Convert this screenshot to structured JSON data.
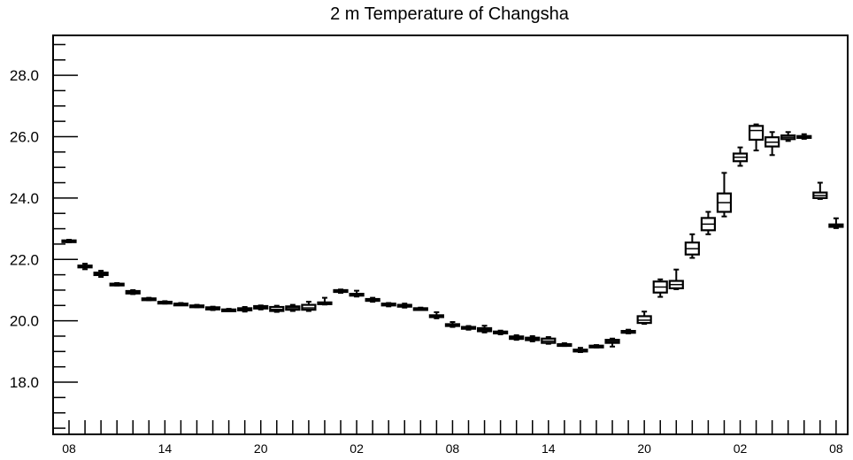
{
  "chart_data": {
    "type": "box",
    "title": "2 m Temperature of Changsha",
    "xlabel": "",
    "ylabel": "",
    "ylim": [
      16.3,
      29.3
    ],
    "yticks": [
      18.0,
      20.0,
      22.0,
      24.0,
      26.0,
      28.0
    ],
    "ytick_labels": [
      "18.0",
      "20.0",
      "22.0",
      "24.0",
      "26.0",
      "28.0"
    ],
    "xtick_labels": [
      "08",
      "14",
      "20",
      "02",
      "08",
      "14",
      "20",
      "02",
      "08"
    ],
    "n_steps": 48,
    "grid": false,
    "series": [
      {
        "t": 0,
        "whislo": 22.56,
        "q1": 22.58,
        "med": 22.6,
        "q3": 22.62,
        "whishi": 22.64
      },
      {
        "t": 1,
        "whislo": 21.68,
        "q1": 21.74,
        "med": 21.77,
        "q3": 21.8,
        "whishi": 21.86
      },
      {
        "t": 2,
        "whislo": 21.43,
        "q1": 21.49,
        "med": 21.53,
        "q3": 21.57,
        "whishi": 21.63
      },
      {
        "t": 3,
        "whislo": 21.15,
        "q1": 21.17,
        "med": 21.19,
        "q3": 21.21,
        "whishi": 21.23
      },
      {
        "t": 4,
        "whislo": 20.87,
        "q1": 20.89,
        "med": 20.93,
        "q3": 20.97,
        "whishi": 21.0
      },
      {
        "t": 5,
        "whislo": 20.67,
        "q1": 20.69,
        "med": 20.71,
        "q3": 20.73,
        "whishi": 20.75
      },
      {
        "t": 6,
        "whislo": 20.56,
        "q1": 20.58,
        "med": 20.6,
        "q3": 20.62,
        "whishi": 20.64
      },
      {
        "t": 7,
        "whislo": 20.52,
        "q1": 20.53,
        "med": 20.55,
        "q3": 20.56,
        "whishi": 20.58
      },
      {
        "t": 8,
        "whislo": 20.44,
        "q1": 20.46,
        "med": 20.48,
        "q3": 20.5,
        "whishi": 20.52
      },
      {
        "t": 9,
        "whislo": 20.35,
        "q1": 20.37,
        "med": 20.4,
        "q3": 20.44,
        "whishi": 20.46
      },
      {
        "t": 10,
        "whislo": 20.32,
        "q1": 20.34,
        "med": 20.35,
        "q3": 20.37,
        "whishi": 20.39
      },
      {
        "t": 11,
        "whislo": 20.3,
        "q1": 20.34,
        "med": 20.37,
        "q3": 20.41,
        "whishi": 20.45
      },
      {
        "t": 12,
        "whislo": 20.37,
        "q1": 20.4,
        "med": 20.44,
        "q3": 20.48,
        "whishi": 20.5
      },
      {
        "t": 13,
        "whislo": 20.29,
        "q1": 20.32,
        "med": 20.37,
        "q3": 20.45,
        "whishi": 20.49
      },
      {
        "t": 14,
        "whislo": 20.32,
        "q1": 20.36,
        "med": 20.42,
        "q3": 20.47,
        "whishi": 20.52
      },
      {
        "t": 15,
        "whislo": 20.32,
        "q1": 20.36,
        "med": 20.42,
        "q3": 20.52,
        "whishi": 20.62
      },
      {
        "t": 16,
        "whislo": 20.53,
        "q1": 20.56,
        "med": 20.58,
        "q3": 20.6,
        "whishi": 20.75
      },
      {
        "t": 17,
        "whislo": 20.91,
        "q1": 20.94,
        "med": 20.97,
        "q3": 21.0,
        "whishi": 21.02
      },
      {
        "t": 18,
        "whislo": 20.79,
        "q1": 20.82,
        "med": 20.85,
        "q3": 20.88,
        "whishi": 20.98
      },
      {
        "t": 19,
        "whislo": 20.62,
        "q1": 20.65,
        "med": 20.68,
        "q3": 20.71,
        "whishi": 20.75
      },
      {
        "t": 20,
        "whislo": 20.47,
        "q1": 20.5,
        "med": 20.53,
        "q3": 20.56,
        "whishi": 20.58
      },
      {
        "t": 21,
        "whislo": 20.43,
        "q1": 20.46,
        "med": 20.49,
        "q3": 20.52,
        "whishi": 20.56
      },
      {
        "t": 22,
        "whislo": 20.35,
        "q1": 20.37,
        "med": 20.39,
        "q3": 20.41,
        "whishi": 20.43
      },
      {
        "t": 23,
        "whislo": 20.08,
        "q1": 20.12,
        "med": 20.15,
        "q3": 20.18,
        "whishi": 20.28
      },
      {
        "t": 24,
        "whislo": 19.8,
        "q1": 19.83,
        "med": 19.86,
        "q3": 19.89,
        "whishi": 19.96
      },
      {
        "t": 25,
        "whislo": 19.71,
        "q1": 19.74,
        "med": 19.77,
        "q3": 19.8,
        "whishi": 19.83
      },
      {
        "t": 26,
        "whislo": 19.62,
        "q1": 19.66,
        "med": 19.71,
        "q3": 19.76,
        "whishi": 19.84
      },
      {
        "t": 27,
        "whislo": 19.56,
        "q1": 19.59,
        "med": 19.62,
        "q3": 19.65,
        "whishi": 19.68
      },
      {
        "t": 28,
        "whislo": 19.38,
        "q1": 19.41,
        "med": 19.45,
        "q3": 19.49,
        "whishi": 19.53
      },
      {
        "t": 29,
        "whislo": 19.33,
        "q1": 19.37,
        "med": 19.41,
        "q3": 19.45,
        "whishi": 19.5
      },
      {
        "t": 30,
        "whislo": 19.25,
        "q1": 19.28,
        "med": 19.34,
        "q3": 19.42,
        "whishi": 19.47
      },
      {
        "t": 31,
        "whislo": 19.18,
        "q1": 19.2,
        "med": 19.22,
        "q3": 19.24,
        "whishi": 19.27
      },
      {
        "t": 32,
        "whislo": 18.98,
        "q1": 19.0,
        "med": 19.03,
        "q3": 19.06,
        "whishi": 19.12
      },
      {
        "t": 33,
        "whislo": 19.13,
        "q1": 19.15,
        "med": 19.17,
        "q3": 19.19,
        "whishi": 19.21
      },
      {
        "t": 34,
        "whislo": 19.16,
        "q1": 19.28,
        "med": 19.33,
        "q3": 19.38,
        "whishi": 19.42
      },
      {
        "t": 35,
        "whislo": 19.59,
        "q1": 19.61,
        "med": 19.64,
        "q3": 19.67,
        "whishi": 19.71
      },
      {
        "t": 36,
        "whislo": 19.9,
        "q1": 19.93,
        "med": 20.02,
        "q3": 20.15,
        "whishi": 20.3
      },
      {
        "t": 37,
        "whislo": 20.78,
        "q1": 20.92,
        "med": 21.1,
        "q3": 21.28,
        "whishi": 21.35
      },
      {
        "t": 38,
        "whislo": 21.03,
        "q1": 21.06,
        "med": 21.18,
        "q3": 21.3,
        "whishi": 21.67
      },
      {
        "t": 39,
        "whislo": 22.05,
        "q1": 22.16,
        "med": 22.35,
        "q3": 22.55,
        "whishi": 22.82
      },
      {
        "t": 40,
        "whislo": 22.82,
        "q1": 22.95,
        "med": 23.15,
        "q3": 23.35,
        "whishi": 23.55
      },
      {
        "t": 41,
        "whislo": 23.4,
        "q1": 23.55,
        "med": 23.85,
        "q3": 24.15,
        "whishi": 24.82
      },
      {
        "t": 42,
        "whislo": 25.05,
        "q1": 25.2,
        "med": 25.33,
        "q3": 25.45,
        "whishi": 25.65
      },
      {
        "t": 43,
        "whislo": 25.55,
        "q1": 25.9,
        "med": 26.2,
        "q3": 26.35,
        "whishi": 26.4
      },
      {
        "t": 44,
        "whislo": 25.4,
        "q1": 25.68,
        "med": 25.82,
        "q3": 25.98,
        "whishi": 26.15
      },
      {
        "t": 45,
        "whislo": 25.86,
        "q1": 25.92,
        "med": 25.98,
        "q3": 26.04,
        "whishi": 26.15
      },
      {
        "t": 46,
        "whislo": 25.93,
        "q1": 25.96,
        "med": 25.99,
        "q3": 26.02,
        "whishi": 26.08
      },
      {
        "t": 47,
        "whislo": 23.97,
        "q1": 24.0,
        "med": 24.08,
        "q3": 24.18,
        "whishi": 24.5
      },
      {
        "t": 48,
        "whislo": 23.02,
        "q1": 23.06,
        "med": 23.1,
        "q3": 23.14,
        "whishi": 23.34
      }
    ]
  }
}
